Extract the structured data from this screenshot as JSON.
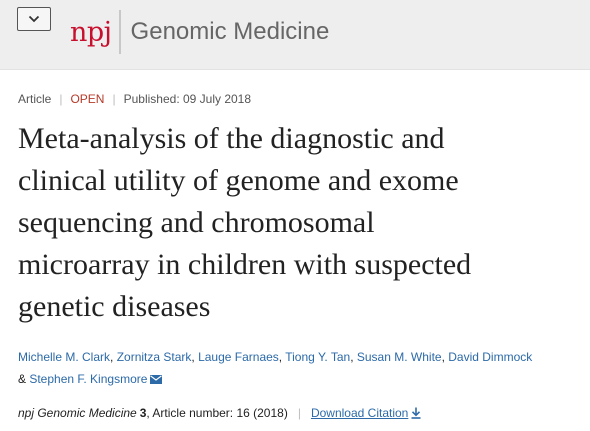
{
  "header": {
    "logo_brand": "npj",
    "journal_name": "Genomic Medicine",
    "brand_color": "#c8102e",
    "menu_icon": "chevron-down-icon"
  },
  "meta": {
    "type": "Article",
    "access": "OPEN",
    "published": "Published: 09 July 2018"
  },
  "article": {
    "title_lines": [
      "Meta-analysis of the diagnostic and",
      "clinical utility of genome and exome",
      "sequencing and chromosomal",
      "microarray in children with suspected",
      "genetic diseases"
    ]
  },
  "authors": {
    "names": [
      "Michelle M. Clark",
      "Zornitza Stark",
      "Lauge Farnaes",
      "Tiong Y. Tan",
      "Susan M. White",
      "David Dimmock",
      "Stephen F. Kingsmore"
    ],
    "separator": ", ",
    "last_joiner": "& ",
    "contact_icon": "mail-icon",
    "link_color": "#2c6aa8"
  },
  "citation": {
    "journal": "npj Genomic Medicine",
    "volume": "3",
    "article_number": ", Article number: 16 (2018)",
    "download_label": "Download Citation",
    "download_icon": "download-icon"
  }
}
